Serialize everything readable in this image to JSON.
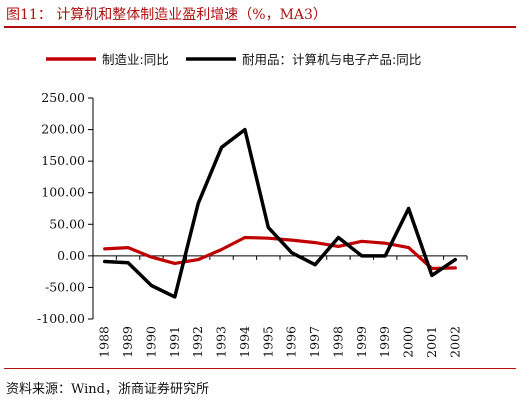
{
  "figure": {
    "title": "图11：  计算机和整体制造业盈利增速（%，MA3）",
    "source": "资料来源：Wind，浙商证券研究所"
  },
  "colors": {
    "accent": "#b01010",
    "series_manufacturing": "#c00000",
    "series_consumer": "#000000"
  },
  "chart_data": {
    "type": "line",
    "title": "",
    "xlabel": "",
    "ylabel": "",
    "ylim": [
      -100,
      250
    ],
    "yticks": [
      -100,
      -50,
      0,
      50,
      100,
      150,
      200,
      250
    ],
    "ytick_labels": [
      "-100.00",
      "-50.00",
      "0.00",
      "50.00",
      "100.00",
      "150.00",
      "200.00",
      "250.00"
    ],
    "grid": false,
    "legend_position": "top",
    "x": [
      "1988",
      "1989",
      "1990",
      "1991",
      "1992",
      "1993",
      "1994",
      "1995",
      "1996",
      "1997",
      "1998",
      "1999",
      "1999",
      "2000",
      "2001",
      "2002"
    ],
    "series": [
      {
        "name": "制造业:同比",
        "color": "#c00000",
        "values": [
          11,
          13,
          -2,
          -12,
          -6,
          10,
          29,
          28,
          25,
          21,
          15,
          23,
          20,
          13,
          -20,
          -19
        ]
      },
      {
        "name": "耐用品：计算机与电子产品:同比",
        "color": "#000000",
        "values": [
          -9,
          -11,
          -47,
          -65,
          83,
          172,
          200,
          45,
          5,
          -14,
          29,
          0,
          0,
          75,
          -31,
          -6
        ]
      }
    ]
  }
}
